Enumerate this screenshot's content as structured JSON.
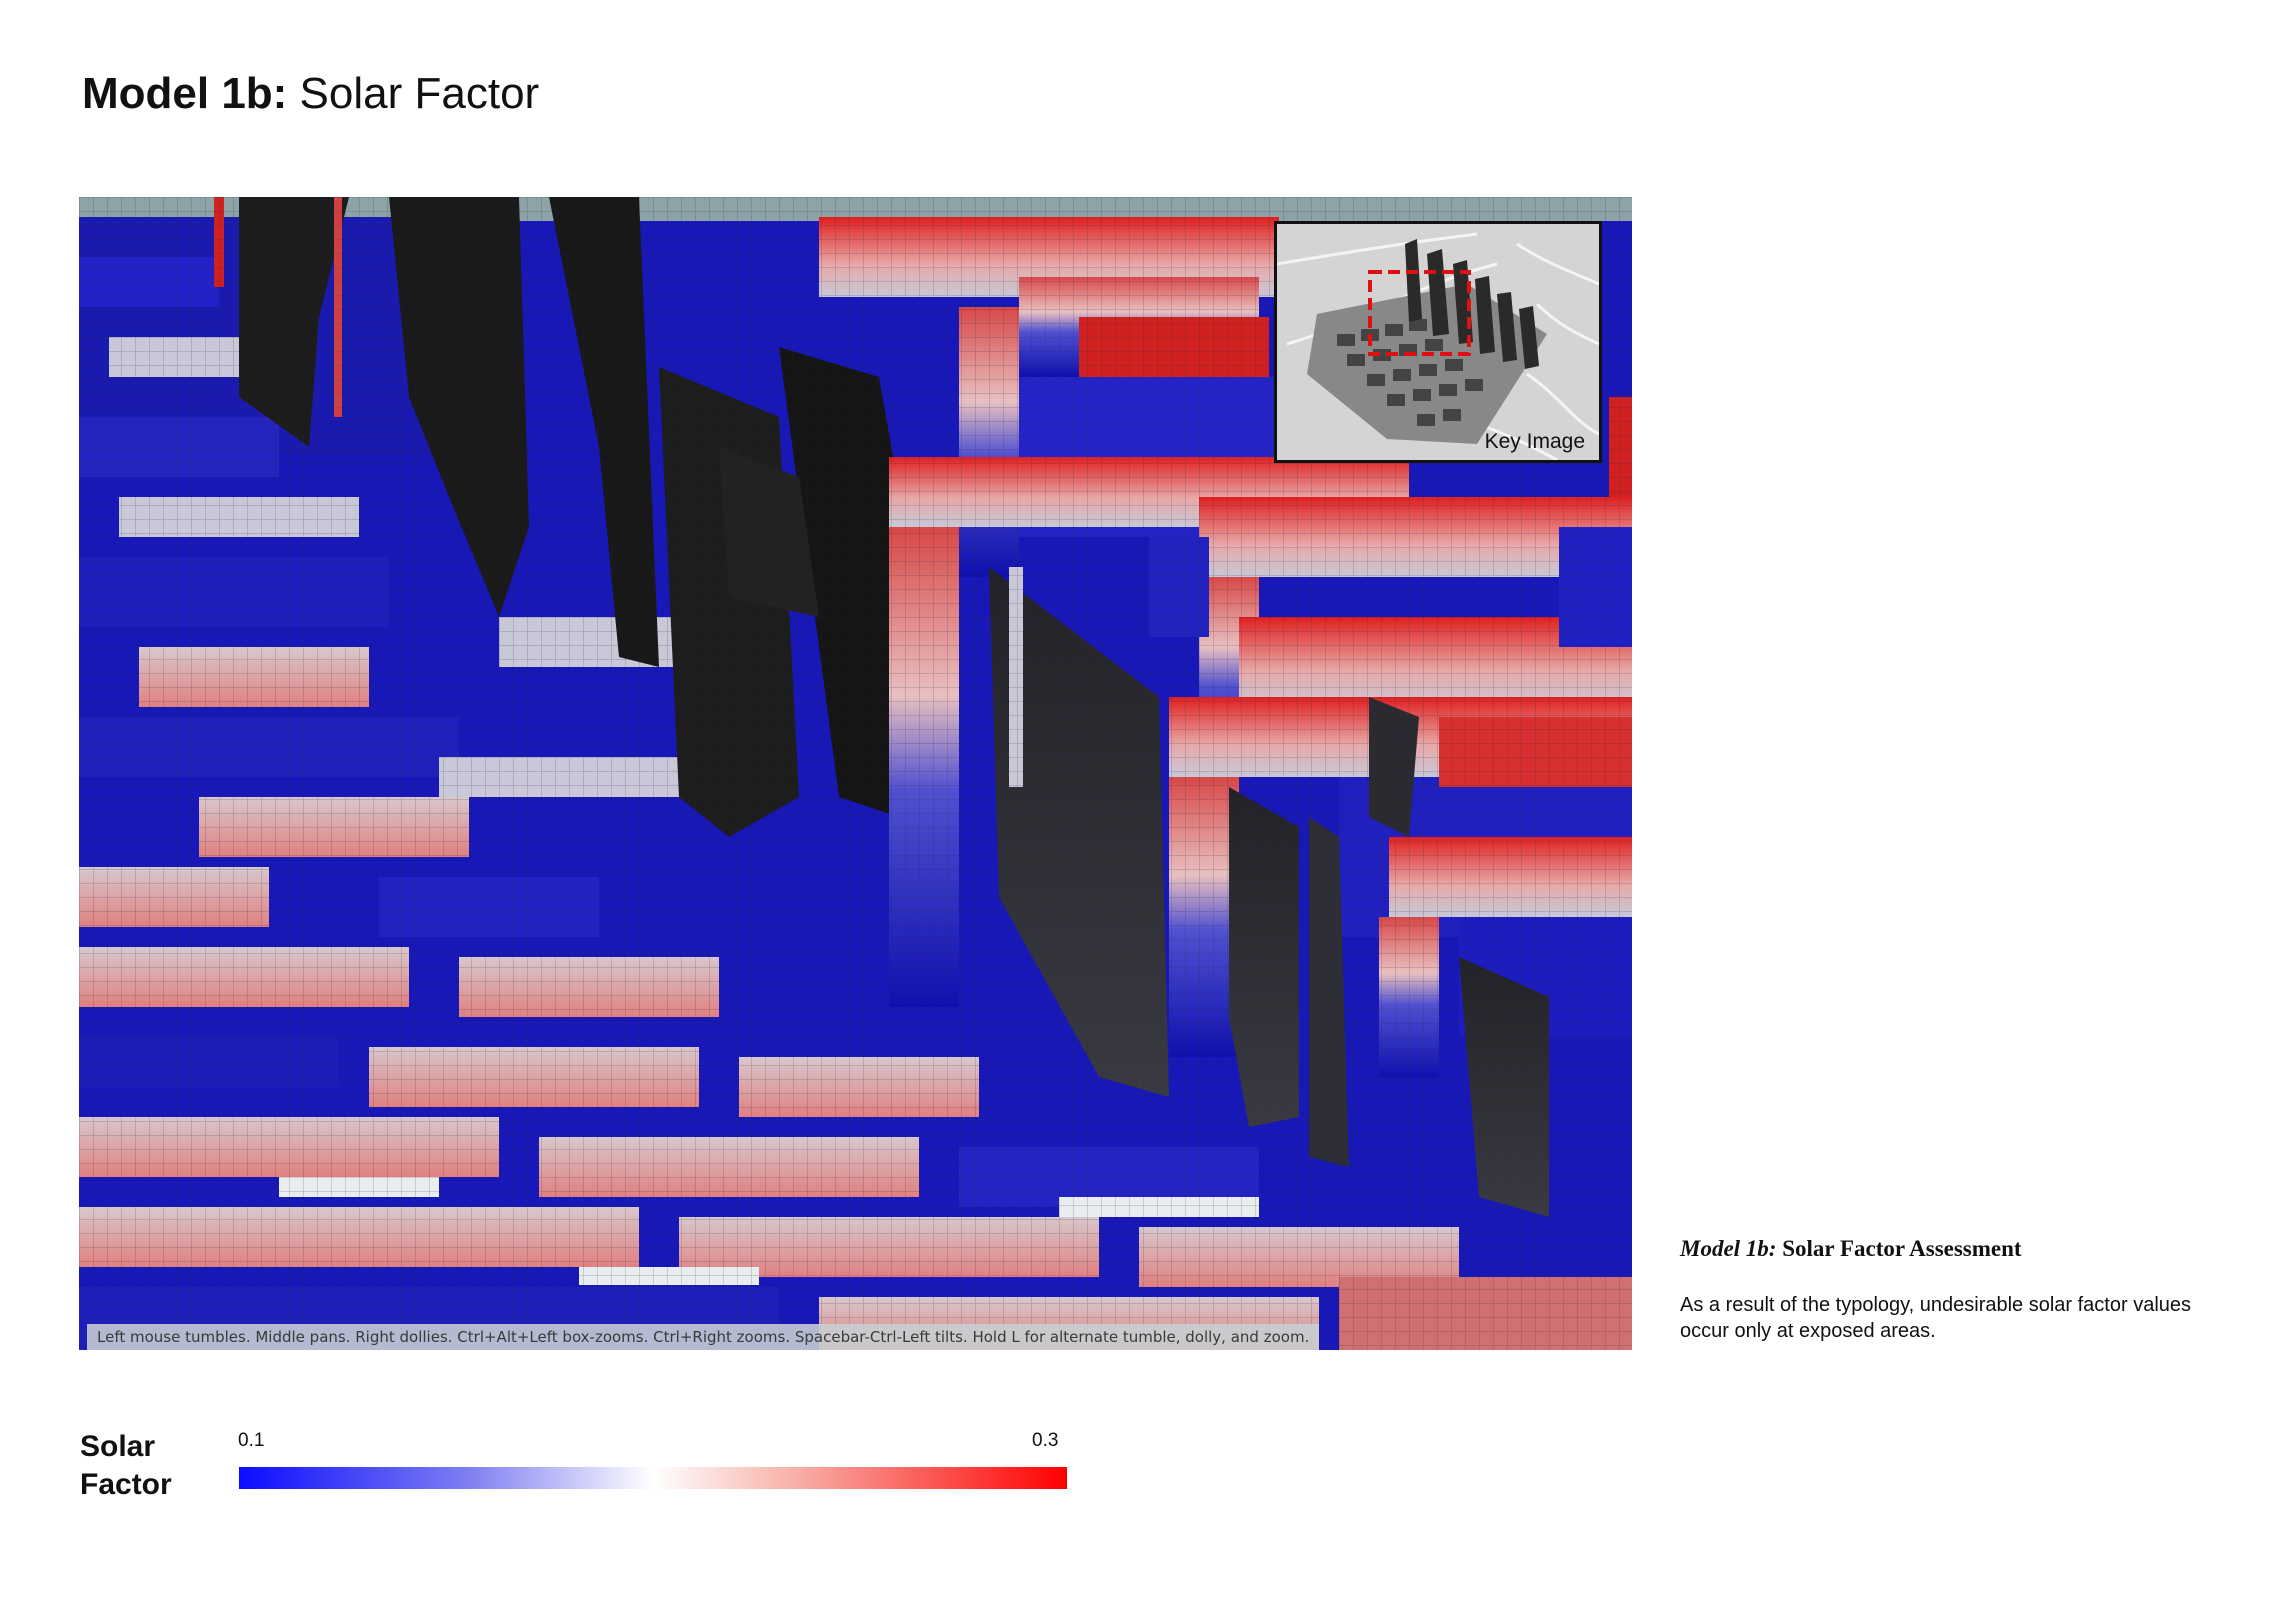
{
  "header": {
    "title_bold": "Model 1b:",
    "title_rest": " Solar Factor"
  },
  "viewport": {
    "hint": "Left mouse tumbles. Middle pans. Right dollies. Ctrl+Alt+Left box-zooms. Ctrl+Right zooms. Spacebar-Ctrl-Left tilts. Hold L for alternate tumble, dolly, and zoom."
  },
  "key_image": {
    "label": "Key Image",
    "highlight_color": "#e01010"
  },
  "caption": {
    "title_italic": "Model 1b:",
    "title_rest": " Solar Factor Assessment",
    "body": "As a result of the typology, undesirable solar factor values occur only at exposed areas."
  },
  "legend": {
    "label_line1": "Solar",
    "label_line2": "Factor",
    "min": "0.1",
    "max": "0.3",
    "color_low": "#0c0cff",
    "color_mid": "#ffffff",
    "color_high": "#ff0000"
  }
}
